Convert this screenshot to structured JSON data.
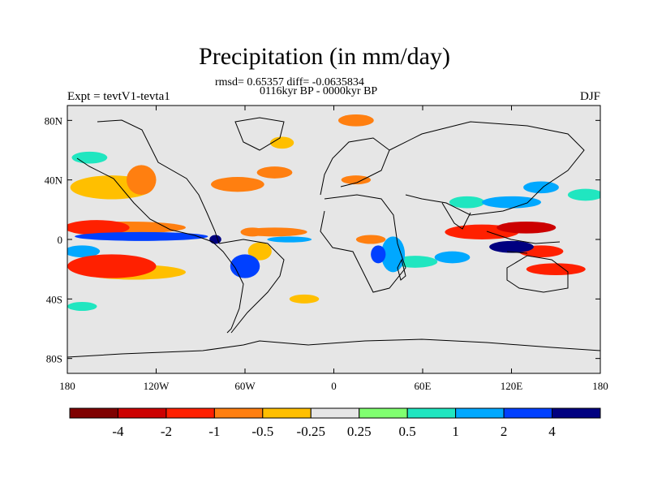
{
  "title": "Precipitation (in mm/day)",
  "stats_line": "rmsd= 0.65357  diff= -0.0635834",
  "period_line": "0116kyr BP - 0000kyr BP",
  "left_label": "Expt = tevtV1-tevta1",
  "right_label": "DJF",
  "colors": {
    "land": "#e6e6e6",
    "coast": "#000000"
  },
  "chart_data": {
    "type": "heatmap",
    "title": "Precipitation (in mm/day)",
    "projection": "cylindrical-equidistant",
    "xlim": [
      -180,
      180
    ],
    "ylim": [
      -90,
      90
    ],
    "x_ticks": [
      "180",
      "120W",
      "60W",
      "0",
      "60E",
      "120E",
      "180"
    ],
    "x_tick_values": [
      -180,
      -120,
      -60,
      0,
      60,
      120,
      180
    ],
    "y_ticks": [
      "80N",
      "40N",
      "0",
      "40S",
      "80S"
    ],
    "y_tick_values": [
      80,
      40,
      0,
      -40,
      -80
    ],
    "colorbar": {
      "levels": [
        "-4",
        "-2",
        "-1",
        "-0.5",
        "-0.25",
        "0.25",
        "0.5",
        "1",
        "2",
        "4"
      ],
      "colors": [
        "#7f0000",
        "#cc0000",
        "#ff2000",
        "#ff7f10",
        "#ffbf00",
        "#e6e6e6",
        "#80ff70",
        "#20e6c0",
        "#00a8ff",
        "#0040ff",
        "#000080"
      ]
    },
    "anomaly_regions": [
      {
        "lon": -160,
        "lat": 8,
        "rx": 22,
        "ry": 5,
        "value": -2
      },
      {
        "lon": -140,
        "lat": 8,
        "rx": 40,
        "ry": 4,
        "value": -1
      },
      {
        "lon": -130,
        "lat": 2,
        "rx": 45,
        "ry": 3,
        "value": 2
      },
      {
        "lon": -150,
        "lat": -18,
        "rx": 30,
        "ry": 8,
        "value": -2
      },
      {
        "lon": -135,
        "lat": -22,
        "rx": 35,
        "ry": 5,
        "value": -0.5
      },
      {
        "lon": -170,
        "lat": -8,
        "rx": 12,
        "ry": 4,
        "value": 1
      },
      {
        "lon": -150,
        "lat": 35,
        "rx": 28,
        "ry": 8,
        "value": -0.5
      },
      {
        "lon": -130,
        "lat": 40,
        "rx": 10,
        "ry": 10,
        "value": -1
      },
      {
        "lon": -165,
        "lat": 55,
        "rx": 12,
        "ry": 4,
        "value": 0.5
      },
      {
        "lon": -80,
        "lat": 0,
        "rx": 4,
        "ry": 3,
        "value": 4
      },
      {
        "lon": -60,
        "lat": -18,
        "rx": 10,
        "ry": 8,
        "value": 2
      },
      {
        "lon": -50,
        "lat": -8,
        "rx": 8,
        "ry": 6,
        "value": -0.5
      },
      {
        "lon": -55,
        "lat": 5,
        "rx": 8,
        "ry": 3,
        "value": -1
      },
      {
        "lon": -40,
        "lat": 5,
        "rx": 22,
        "ry": 3,
        "value": -1
      },
      {
        "lon": -30,
        "lat": 0,
        "rx": 15,
        "ry": 2,
        "value": 1
      },
      {
        "lon": -65,
        "lat": 37,
        "rx": 18,
        "ry": 5,
        "value": -1
      },
      {
        "lon": -40,
        "lat": 45,
        "rx": 12,
        "ry": 4,
        "value": -1
      },
      {
        "lon": -35,
        "lat": 65,
        "rx": 8,
        "ry": 4,
        "value": -0.5
      },
      {
        "lon": 15,
        "lat": 80,
        "rx": 12,
        "ry": 4,
        "value": -1
      },
      {
        "lon": 15,
        "lat": 40,
        "rx": 10,
        "ry": 3,
        "value": -1
      },
      {
        "lon": 40,
        "lat": -10,
        "rx": 8,
        "ry": 12,
        "value": 1
      },
      {
        "lon": 30,
        "lat": -10,
        "rx": 5,
        "ry": 6,
        "value": 2
      },
      {
        "lon": 55,
        "lat": -15,
        "rx": 15,
        "ry": 4,
        "value": 0.5
      },
      {
        "lon": 25,
        "lat": 0,
        "rx": 10,
        "ry": 3,
        "value": -1
      },
      {
        "lon": 100,
        "lat": 5,
        "rx": 25,
        "ry": 5,
        "value": -2
      },
      {
        "lon": 130,
        "lat": 8,
        "rx": 20,
        "ry": 4,
        "value": -4
      },
      {
        "lon": 120,
        "lat": -5,
        "rx": 15,
        "ry": 4,
        "value": 4
      },
      {
        "lon": 140,
        "lat": -8,
        "rx": 15,
        "ry": 4,
        "value": -2
      },
      {
        "lon": 150,
        "lat": -20,
        "rx": 20,
        "ry": 4,
        "value": -2
      },
      {
        "lon": 120,
        "lat": 25,
        "rx": 20,
        "ry": 4,
        "value": 1
      },
      {
        "lon": 140,
        "lat": 35,
        "rx": 12,
        "ry": 4,
        "value": 1
      },
      {
        "lon": 90,
        "lat": 25,
        "rx": 12,
        "ry": 4,
        "value": 0.5
      },
      {
        "lon": 80,
        "lat": -12,
        "rx": 12,
        "ry": 4,
        "value": 1
      },
      {
        "lon": 170,
        "lat": 30,
        "rx": 12,
        "ry": 4,
        "value": 0.5
      },
      {
        "lon": -20,
        "lat": -40,
        "rx": 10,
        "ry": 3,
        "value": -0.5
      },
      {
        "lon": -170,
        "lat": -45,
        "rx": 10,
        "ry": 3,
        "value": 0.5
      }
    ]
  }
}
